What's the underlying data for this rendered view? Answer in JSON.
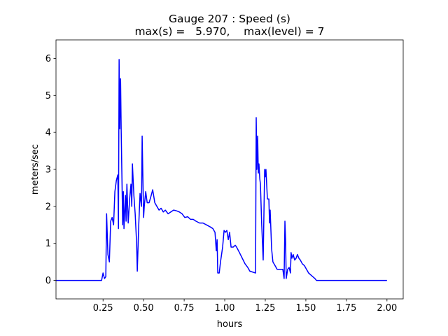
{
  "chart_data": {
    "type": "line",
    "title": "Gauge 207 : Speed (s)",
    "subtitle": "max(s) =   5.970,    max(level) = 7",
    "xlabel": "hours",
    "ylabel": "meters/sec",
    "color": "#0000ff",
    "xlim": [
      -0.04,
      2.1
    ],
    "ylim": [
      -0.5,
      6.5
    ],
    "xticks": [
      0.25,
      {
        "value": 0.5,
        "label": "0.50"
      },
      0.75,
      {
        "value": 1.0,
        "label": "1.00"
      },
      1.25,
      {
        "value": 1.5,
        "label": "1.50"
      },
      1.75,
      {
        "value": 2.0,
        "label": "2.00"
      }
    ],
    "yticks": [
      0,
      1,
      2,
      3,
      4,
      5,
      6
    ],
    "x": [
      -0.04,
      0.241,
      0.25,
      0.259,
      0.267,
      0.272,
      0.28,
      0.289,
      0.297,
      0.306,
      0.315,
      0.323,
      0.332,
      0.341,
      0.345,
      0.349,
      0.353,
      0.358,
      0.362,
      0.371,
      0.375,
      0.379,
      0.388,
      0.392,
      0.397,
      0.405,
      0.414,
      0.422,
      0.427,
      0.431,
      0.44,
      0.448,
      0.457,
      0.461,
      0.47,
      0.478,
      0.487,
      0.491,
      0.5,
      0.504,
      0.513,
      0.522,
      0.534,
      0.547,
      0.556,
      0.569,
      0.582,
      0.595,
      0.608,
      0.621,
      0.634,
      0.651,
      0.668,
      0.685,
      0.703,
      0.72,
      0.737,
      0.754,
      0.772,
      0.789,
      0.806,
      0.823,
      0.845,
      0.866,
      0.888,
      0.909,
      0.927,
      0.94,
      0.948,
      0.953,
      0.957,
      0.966,
      0.974,
      0.987,
      0.996,
      1.004,
      1.013,
      1.022,
      1.03,
      1.039,
      1.052,
      1.065,
      1.073,
      1.091,
      1.108,
      1.125,
      1.142,
      1.155,
      1.19,
      1.194,
      1.198,
      1.203,
      1.207,
      1.211,
      1.216,
      1.22,
      1.228,
      1.237,
      1.246,
      1.25,
      1.254,
      1.263,
      1.272,
      1.276,
      1.28,
      1.289,
      1.297,
      1.31,
      1.323,
      1.341,
      1.358,
      1.366,
      1.371,
      1.375,
      1.379,
      1.388,
      1.397,
      1.405,
      1.409,
      1.414,
      1.422,
      1.431,
      1.44,
      1.448,
      1.457,
      1.466,
      1.478,
      1.491,
      1.504,
      1.517,
      1.53,
      1.543,
      1.556,
      1.565,
      2.0
    ],
    "values": [
      0,
      0,
      0.2,
      0.05,
      0.1,
      1.8,
      0.7,
      0.5,
      1.6,
      1.7,
      1.5,
      2.4,
      2.7,
      2.85,
      1.4,
      5.97,
      4.1,
      5.45,
      4.0,
      1.5,
      2.4,
      1.4,
      2.3,
      1.6,
      2.6,
      1.55,
      2.2,
      2.6,
      2.0,
      3.15,
      2.3,
      1.8,
      1.0,
      0.25,
      1.5,
      2.35,
      2.0,
      3.9,
      1.7,
      2.0,
      2.4,
      2.1,
      2.1,
      2.3,
      2.45,
      2.1,
      2.0,
      1.9,
      1.95,
      1.85,
      1.9,
      1.8,
      1.85,
      1.9,
      1.88,
      1.85,
      1.8,
      1.7,
      1.72,
      1.65,
      1.65,
      1.6,
      1.55,
      1.55,
      1.5,
      1.45,
      1.4,
      1.3,
      0.8,
      1.1,
      0.2,
      0.2,
      0.5,
      0.9,
      1.35,
      1.3,
      1.35,
      1.1,
      1.3,
      0.9,
      0.9,
      0.95,
      0.9,
      0.75,
      0.6,
      0.45,
      0.35,
      0.25,
      0.2,
      4.4,
      3.0,
      3.9,
      2.9,
      3.15,
      2.75,
      2.6,
      1.5,
      0.55,
      3.0,
      2.8,
      3.0,
      2.2,
      2.2,
      1.55,
      1.9,
      0.85,
      0.5,
      0.4,
      0.3,
      0.3,
      0.3,
      0.05,
      1.6,
      1.1,
      0.05,
      0.3,
      0.35,
      0.2,
      0.75,
      0.6,
      0.7,
      0.55,
      0.6,
      0.7,
      0.6,
      0.55,
      0.45,
      0.4,
      0.3,
      0.2,
      0.15,
      0.1,
      0.05,
      0,
      0
    ]
  }
}
